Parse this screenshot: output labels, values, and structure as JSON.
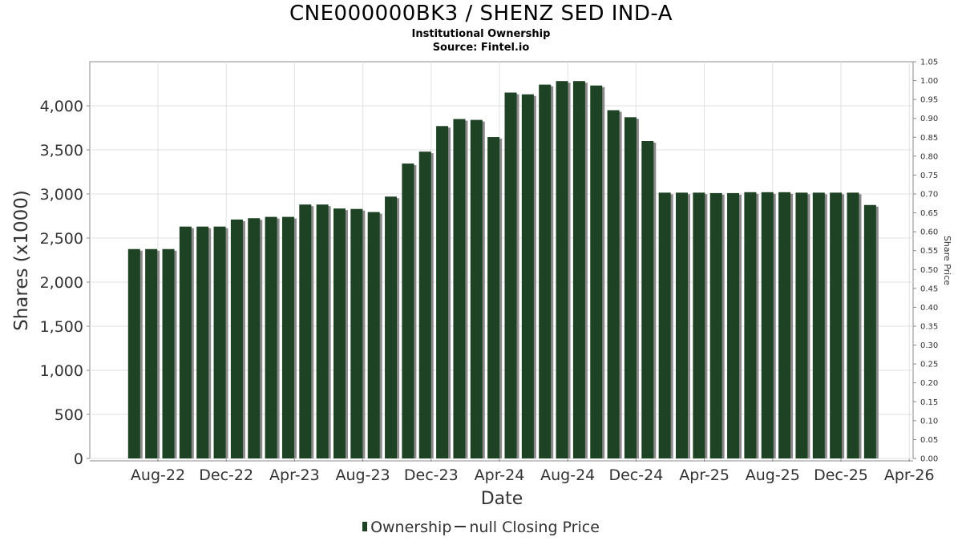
{
  "header": {
    "title": "CNE000000BK3 / SHENZ SED IND-A",
    "subtitle1": "Institutional Ownership",
    "subtitle2": "Source: Fintel.io"
  },
  "legend": {
    "ownership_label": "Ownership",
    "price_label": "null Closing Price"
  },
  "colors": {
    "bar": "#1e4224",
    "bar_shadow": "#8a8a8a",
    "grid": "#e2e2e2"
  },
  "chart_data": {
    "type": "bar",
    "xlabel": "Date",
    "ylabel": "Shares (x1000)",
    "y2label": "Share Price",
    "ylim": [
      0,
      4500
    ],
    "y2lim": [
      0,
      1.05
    ],
    "yticks": [
      "0",
      "500",
      "1,000",
      "1,500",
      "2,000",
      "2,500",
      "3,000",
      "3,500",
      "4,000"
    ],
    "y2ticks": [
      "0.00",
      "0.05",
      "0.10",
      "0.15",
      "0.20",
      "0.25",
      "0.30",
      "0.35",
      "0.40",
      "0.45",
      "0.50",
      "0.55",
      "0.60",
      "0.65",
      "0.70",
      "0.75",
      "0.80",
      "0.85",
      "0.90",
      "0.95",
      "1.00",
      "1.05"
    ],
    "xticks": [
      "Aug-22",
      "Dec-22",
      "Apr-23",
      "Aug-23",
      "Dec-23",
      "Apr-24",
      "Aug-24",
      "Dec-24",
      "Apr-25",
      "Aug-25",
      "Dec-25",
      "Apr-26"
    ],
    "grid": true,
    "legend_position": "bottom",
    "series": [
      {
        "name": "Ownership",
        "values": [
          2375,
          2375,
          2375,
          2630,
          2630,
          2630,
          2710,
          2725,
          2740,
          2740,
          2880,
          2880,
          2835,
          2830,
          2795,
          2970,
          3345,
          3480,
          3770,
          3850,
          3840,
          3645,
          4150,
          4130,
          4240,
          4280,
          4280,
          4230,
          3950,
          3870,
          3600,
          3015,
          3015,
          3015,
          3010,
          3010,
          3020,
          3020,
          3020,
          3015,
          3015,
          3015,
          3015,
          2875
        ]
      }
    ]
  }
}
